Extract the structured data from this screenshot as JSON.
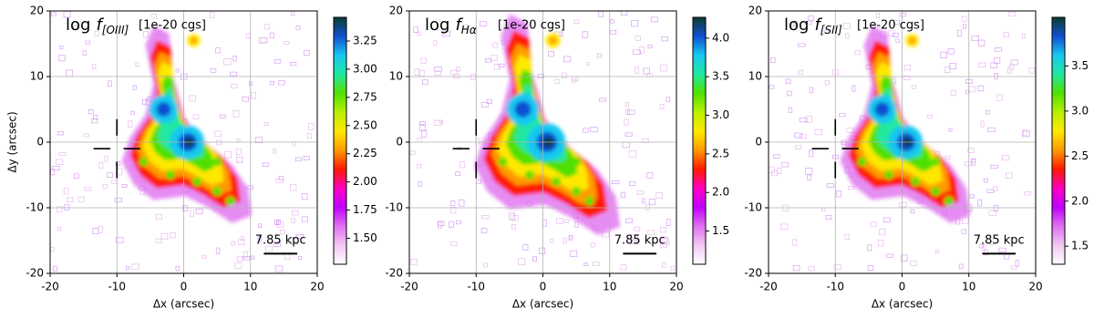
{
  "chart_data": [
    {
      "type": "image",
      "title": "log",
      "symbol": "f",
      "subscript": "[OIII]",
      "units": "[1e-20 cgs]",
      "xlabel": "Δx (arcsec)",
      "ylabel": "Δy (arcsec)",
      "xlim": [
        -20,
        20
      ],
      "xticks": [
        -20,
        -10,
        0,
        10,
        20
      ],
      "ylim": [
        -20,
        20
      ],
      "yticks": [
        -20,
        -10,
        0,
        10,
        20
      ],
      "grid": true,
      "scale_label": "7.85 kpc",
      "colorbar": {
        "lim": [
          1.27,
          3.46
        ],
        "ticks": [
          {
            "value": 1.5,
            "label": "1.50"
          },
          1.75,
          {
            "value": 2.0,
            "label": "2.00"
          },
          2.25,
          {
            "value": 2.5,
            "label": "2.50"
          },
          2.75,
          {
            "value": 3.0,
            "label": "3.00"
          },
          3.25
        ]
      },
      "colormap": [
        "#ffffff",
        "#f2c8f2",
        "#e070f0",
        "#c000ff",
        "#ff00c0",
        "#ff1a00",
        "#ff9a00",
        "#ffe800",
        "#b8f000",
        "#50e000",
        "#20e8a0",
        "#18c8f0",
        "#1050d0",
        "#0a3d2e"
      ]
    },
    {
      "type": "image",
      "title": "log",
      "symbol": "f",
      "subscript": "Hα",
      "units": "[1e-20 cgs]",
      "xlabel": "Δx (arcsec)",
      "xlim": [
        -20,
        20
      ],
      "xticks": [
        -20,
        -10,
        0,
        10,
        20
      ],
      "ylim": [
        -20,
        20
      ],
      "yticks": [
        -20,
        -10,
        0,
        10,
        20
      ],
      "grid": true,
      "scale_label": "7.85 kpc",
      "colorbar": {
        "lim": [
          1.07,
          4.27
        ],
        "ticks": [
          1.5,
          {
            "value": 2.0,
            "label": "2.0"
          },
          2.5,
          {
            "value": 3.0,
            "label": "3.0"
          },
          3.5,
          {
            "value": 4.0,
            "label": "4.0"
          }
        ]
      },
      "colormap": [
        "#ffffff",
        "#f2c8f2",
        "#e070f0",
        "#c000ff",
        "#ff00c0",
        "#ff1a00",
        "#ff9a00",
        "#ffe800",
        "#b8f000",
        "#50e000",
        "#20e8a0",
        "#18c8f0",
        "#1050d0",
        "#0a3d2e"
      ]
    },
    {
      "type": "image",
      "title": "log",
      "symbol": "f",
      "subscript": "[SII]",
      "units": "[1e-20 cgs]",
      "xlabel": "Δx (arcsec)",
      "xlim": [
        -20,
        20
      ],
      "xticks": [
        -20,
        -10,
        0,
        10,
        20
      ],
      "ylim": [
        -20,
        20
      ],
      "yticks": [
        -20,
        -10,
        0,
        10,
        20
      ],
      "grid": true,
      "scale_label": "7.85 kpc",
      "colorbar": {
        "lim": [
          1.3,
          4.04
        ],
        "ticks": [
          1.5,
          {
            "value": 2.0,
            "label": "2.0"
          },
          2.5,
          {
            "value": 3.0,
            "label": "3.0"
          },
          3.5
        ]
      },
      "colormap": [
        "#ffffff",
        "#f2c8f2",
        "#e070f0",
        "#c000ff",
        "#ff00c0",
        "#ff1a00",
        "#ff9a00",
        "#ffe800",
        "#b8f000",
        "#50e000",
        "#20e8a0",
        "#18c8f0",
        "#1050d0",
        "#0a3d2e"
      ]
    }
  ]
}
